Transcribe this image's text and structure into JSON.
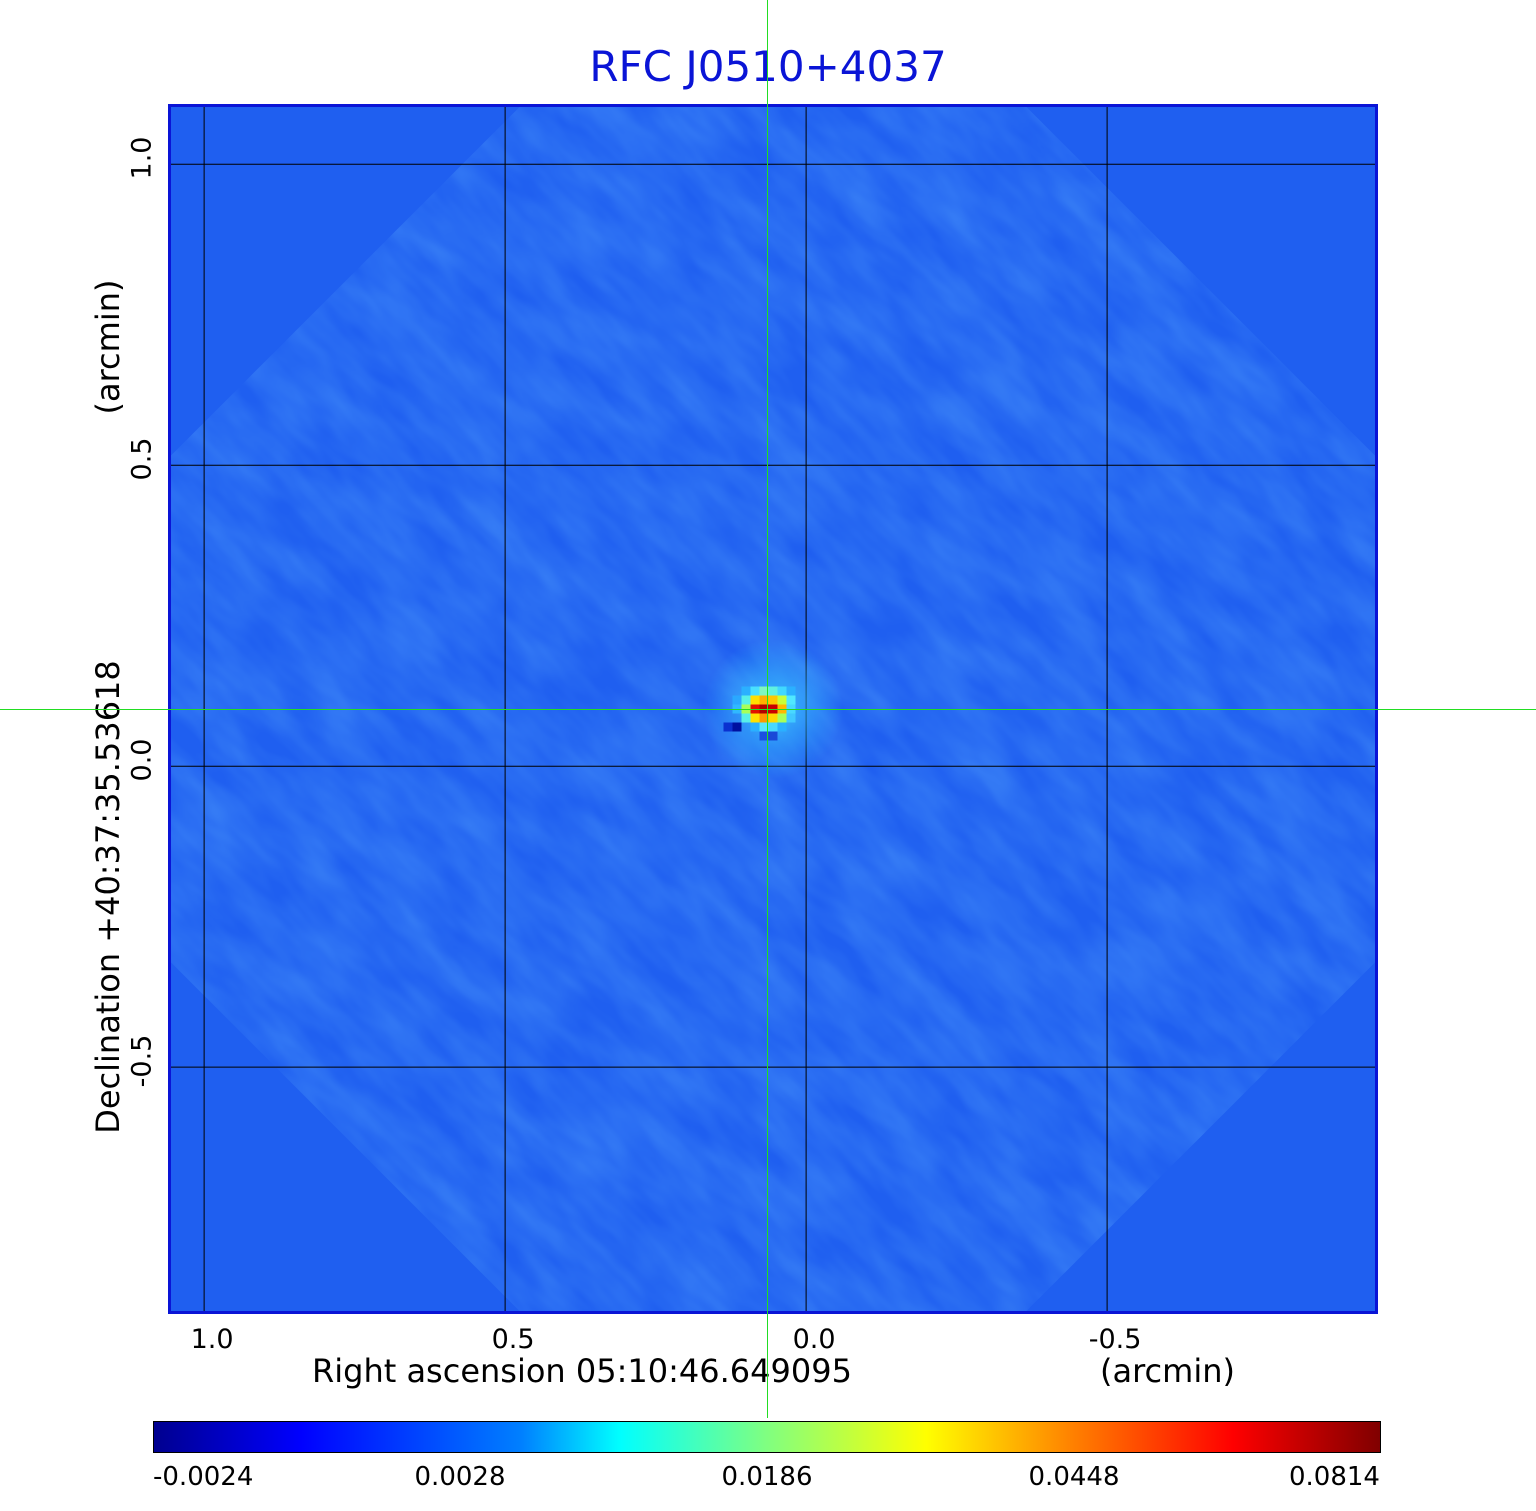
{
  "chart_data": {
    "type": "heatmap",
    "title": "RFC J0510+4037",
    "xlabel": "Right ascension  05:10:46.649095",
    "xunit": "(arcmin)",
    "ylabel": "Declination  +40:37:35.53618",
    "yunit": "(arcmin)",
    "xlim": [
      1.06,
      -0.95
    ],
    "ylim": [
      -0.91,
      1.1
    ],
    "xticks": [
      "1.0",
      "0.5",
      "0.0",
      "-0.5"
    ],
    "xtick_values": [
      1.0,
      0.5,
      0.0,
      -0.5
    ],
    "yticks": [
      "1.0",
      "0.5",
      "0.0",
      "-0.5"
    ],
    "ytick_values": [
      1.0,
      0.5,
      0.0,
      -0.5
    ],
    "grid": true,
    "crosshair": {
      "x": 0.065,
      "y": 0.095
    },
    "peak": {
      "x": 0.055,
      "y": 0.095,
      "value": 0.0814
    },
    "colorbar": {
      "colormap": "jet",
      "tick_labels": [
        "-0.0024",
        "0.0028",
        "0.0186",
        "0.0448",
        "0.0814"
      ],
      "range": [
        -0.0024,
        0.0814
      ]
    }
  },
  "colors": {
    "background_field": "#1f5ff0",
    "frame": "#0a14d6",
    "crosshair": "#22dd22",
    "grid": "#000000",
    "title": "#0a14d6"
  }
}
